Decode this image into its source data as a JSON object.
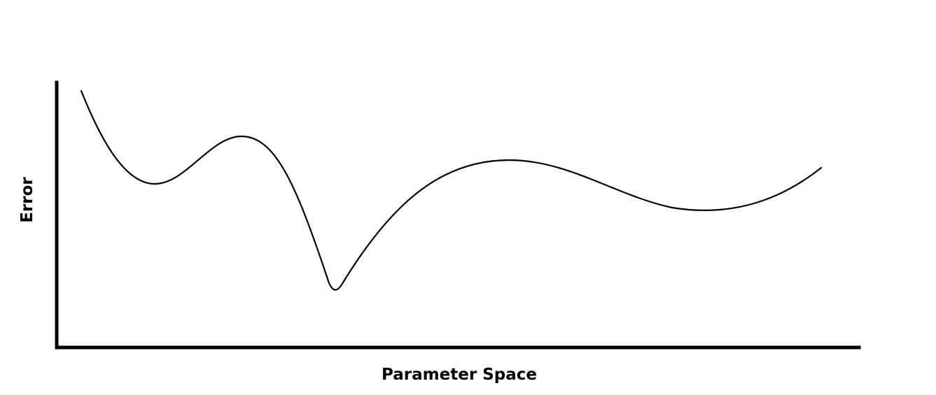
{
  "diagram": {
    "xlabel": "Parameter Space",
    "ylabel": "Error",
    "stroke_color": "#000000",
    "background_color": "#ffffff"
  }
}
